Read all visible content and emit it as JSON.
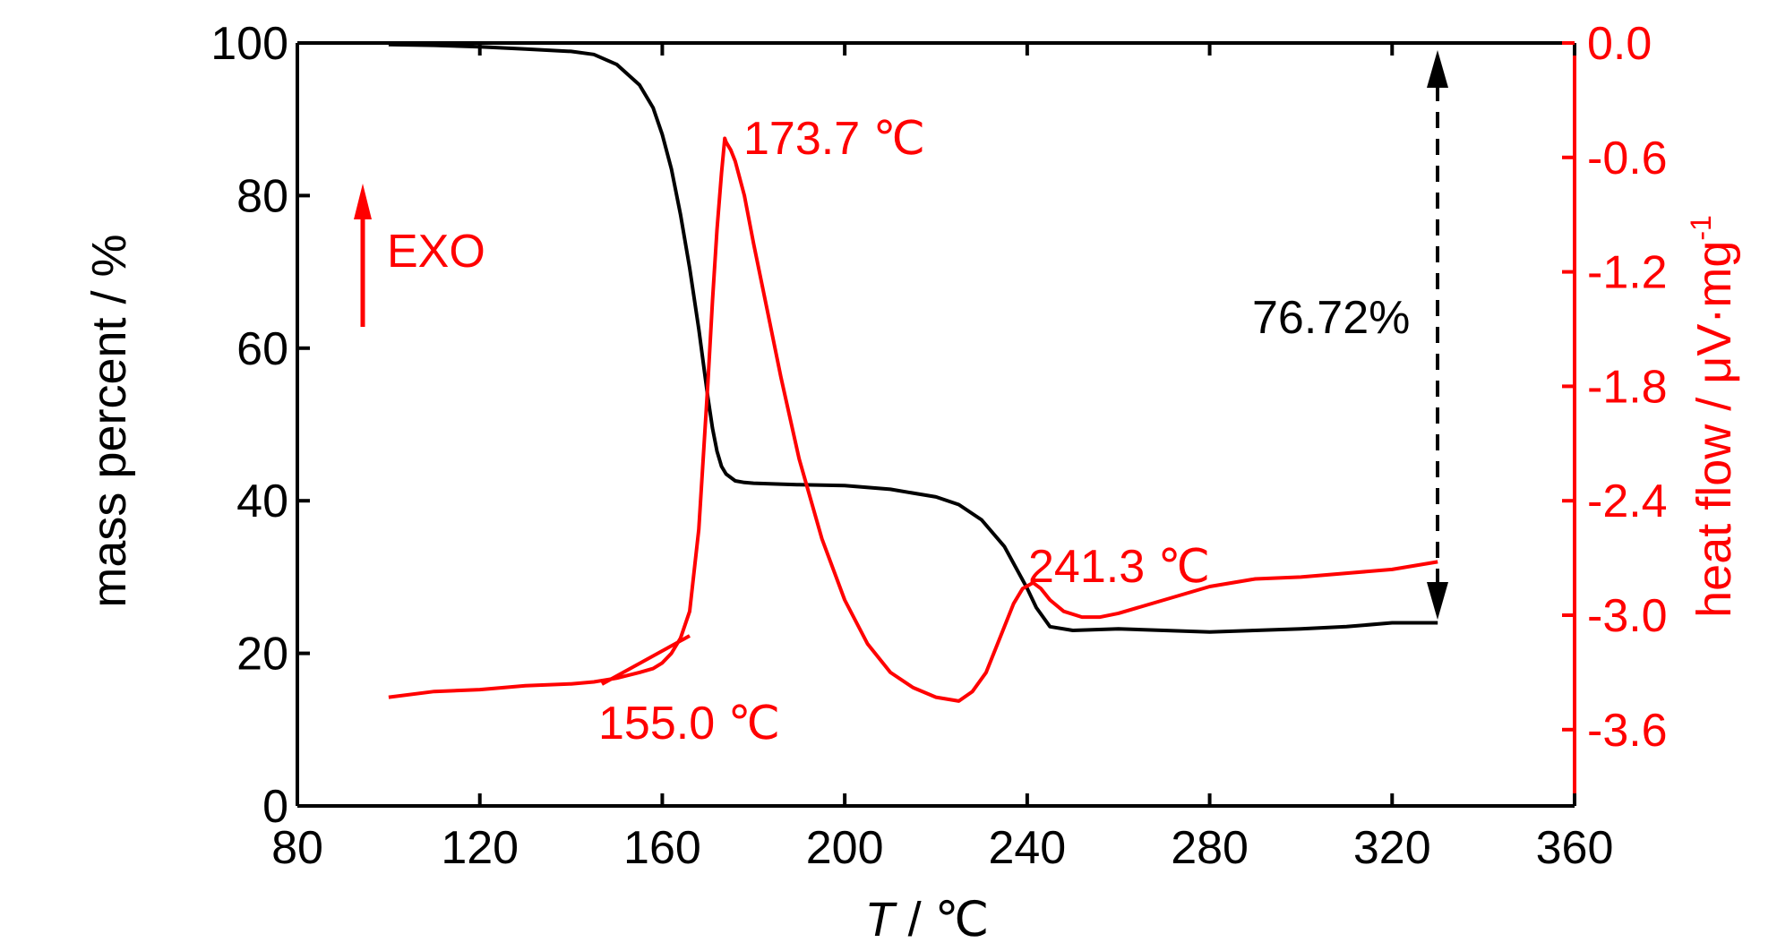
{
  "chart_data": {
    "type": "line",
    "xlabel_var": "T",
    "xlabel_unit": " / ℃",
    "ylabel_left": "mass percent / %",
    "ylabel_right_main": "heat flow / μV·mg",
    "ylabel_right_sup": "-1",
    "xlim": [
      80,
      360
    ],
    "ylim_left": [
      0,
      100
    ],
    "ylim_right": [
      -4.0,
      0.0
    ],
    "x_ticks": [
      "80",
      "120",
      "160",
      "200",
      "240",
      "280",
      "320",
      "360"
    ],
    "y_left_ticks": [
      "0",
      "20",
      "40",
      "60",
      "80",
      "100"
    ],
    "y_right_ticks": [
      "-3.6",
      "-3.0",
      "-2.4",
      "-1.8",
      "-1.2",
      "-0.6",
      "0.0"
    ],
    "grid": false,
    "colors": {
      "mass": "#000000",
      "heat": "#ff0000"
    },
    "series": [
      {
        "axis": "left",
        "x": [
          100,
          110,
          120,
          130,
          140,
          145,
          150,
          155,
          158,
          160,
          162,
          164,
          166,
          168,
          169,
          170,
          171,
          172,
          173,
          174,
          176,
          178,
          180,
          185,
          190,
          200,
          210,
          220,
          225,
          230,
          235,
          240,
          242,
          245,
          250,
          260,
          270,
          280,
          290,
          300,
          310,
          320,
          330
        ],
        "y": [
          99.8,
          99.7,
          99.5,
          99.2,
          98.9,
          98.5,
          97.2,
          94.5,
          91.5,
          88.0,
          83.5,
          77.5,
          70.5,
          62.5,
          58.0,
          53.5,
          49.5,
          46.5,
          44.5,
          43.5,
          42.6,
          42.4,
          42.3,
          42.2,
          42.1,
          42.0,
          41.5,
          40.5,
          39.5,
          37.5,
          34.0,
          28.5,
          26.0,
          23.5,
          23.0,
          23.2,
          23.0,
          22.8,
          23.0,
          23.2,
          23.5,
          24.0,
          24.0
        ]
      },
      {
        "axis": "right",
        "x": [
          100,
          110,
          120,
          130,
          140,
          145,
          150,
          155,
          158,
          160,
          162,
          164,
          166,
          168,
          170,
          171,
          172,
          173,
          173.7,
          174,
          175,
          176,
          178,
          180,
          183,
          186,
          190,
          195,
          200,
          205,
          210,
          215,
          220,
          225,
          228,
          231,
          234,
          237,
          239,
          241.3,
          243,
          245,
          248,
          252,
          256,
          260,
          270,
          280,
          290,
          300,
          310,
          320,
          330
        ],
        "y": [
          -3.43,
          -3.4,
          -3.39,
          -3.37,
          -3.36,
          -3.35,
          -3.33,
          -3.3,
          -3.28,
          -3.25,
          -3.2,
          -3.12,
          -2.98,
          -2.55,
          -1.78,
          -1.35,
          -0.98,
          -0.68,
          -0.5,
          -0.52,
          -0.56,
          -0.62,
          -0.8,
          -1.05,
          -1.4,
          -1.75,
          -2.18,
          -2.6,
          -2.92,
          -3.15,
          -3.3,
          -3.38,
          -3.43,
          -3.45,
          -3.4,
          -3.3,
          -3.12,
          -2.94,
          -2.86,
          -2.83,
          -2.86,
          -2.92,
          -2.98,
          -3.01,
          -3.01,
          -2.99,
          -2.92,
          -2.85,
          -2.81,
          -2.8,
          -2.78,
          -2.76,
          -2.72
        ]
      }
    ],
    "annotations": {
      "peak1": "173.7 ℃",
      "peak2": "241.3 ℃",
      "onset": "155.0 ℃",
      "mass_loss": "76.72%",
      "exo": "EXO"
    }
  }
}
